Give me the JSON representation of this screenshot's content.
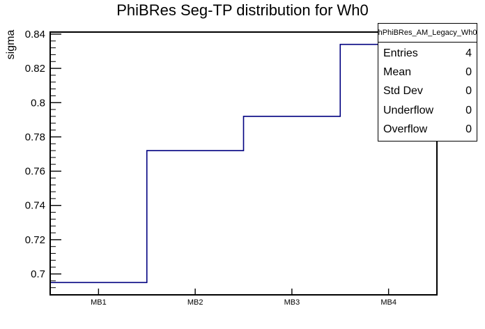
{
  "chart_data": {
    "type": "step-histogram",
    "title": "PhiBRes Seg-TP distribution for Wh0",
    "ylabel": "sigma",
    "xlabel": "",
    "categories": [
      "MB1",
      "MB2",
      "MB3",
      "MB4"
    ],
    "values": [
      0.695,
      0.772,
      0.792,
      0.834
    ],
    "ylim": [
      0.6878,
      0.8412
    ],
    "yticks": [
      0.7,
      0.72,
      0.74,
      0.76,
      0.78,
      0.8,
      0.82,
      0.84
    ],
    "y_minor_step": 0.004,
    "grid": false,
    "legend_position": "none",
    "line_color": "#000080",
    "frame_color": "#000000",
    "background_color": "#ffffff"
  },
  "stats_box": {
    "header": "hPhiBRes_AM_Legacy_Wh0",
    "rows": [
      {
        "label": "Entries",
        "value": "4"
      },
      {
        "label": "Mean",
        "value": "0"
      },
      {
        "label": "Std Dev",
        "value": "0"
      },
      {
        "label": "Underflow",
        "value": "0"
      },
      {
        "label": "Overflow",
        "value": "0"
      }
    ]
  }
}
